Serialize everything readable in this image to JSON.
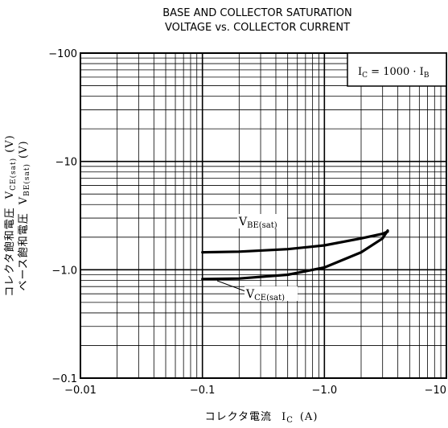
{
  "chart_data": {
    "type": "line",
    "title": "BASE AND COLLECTOR SATURATION",
    "subtitle": "VOLTAGE vs. COLLECTOR CURRENT",
    "x_scale": "log",
    "y_scale": "log",
    "xlim": [
      0.01,
      10
    ],
    "ylim": [
      0.1,
      100
    ],
    "grid": true,
    "x_ticks": [
      {
        "value": 0.01,
        "label": "−0.01"
      },
      {
        "value": 0.1,
        "label": "−0.1"
      },
      {
        "value": 1.0,
        "label": "−1.0"
      },
      {
        "value": 10,
        "label": "−10"
      }
    ],
    "y_ticks": [
      {
        "value": 0.1,
        "label": "−0.1"
      },
      {
        "value": 1.0,
        "label": "−1.0"
      },
      {
        "value": 10,
        "label": "−10"
      },
      {
        "value": 100,
        "label": "−100"
      }
    ],
    "xlabel": {
      "text": "コレクタ電流",
      "symbol": "I",
      "sub": "C",
      "unit": "(A)"
    },
    "ylabel_lines": [
      {
        "text": "コレクタ飽和電圧",
        "symbol": "V",
        "sub": "CE(sat)",
        "unit": "(V)"
      },
      {
        "text": "ベース飽和電圧",
        "symbol": "V",
        "sub": "BE(sat)",
        "unit": "(V)"
      }
    ],
    "condition_box": {
      "text": "I",
      "sub": "C",
      "rest": " = 1000 · I",
      "sub2": "B"
    },
    "series": [
      {
        "name": "V",
        "name_sub": "BE(sat)",
        "x": [
          0.1,
          0.2,
          0.5,
          1.0,
          2.0,
          3.0,
          3.3
        ],
        "y": [
          1.45,
          1.47,
          1.55,
          1.68,
          1.95,
          2.15,
          2.25
        ]
      },
      {
        "name": "V",
        "name_sub": "CE(sat)",
        "x": [
          0.1,
          0.2,
          0.5,
          1.0,
          2.0,
          3.0,
          3.3
        ],
        "y": [
          0.82,
          0.83,
          0.9,
          1.05,
          1.45,
          1.95,
          2.3
        ]
      }
    ]
  }
}
